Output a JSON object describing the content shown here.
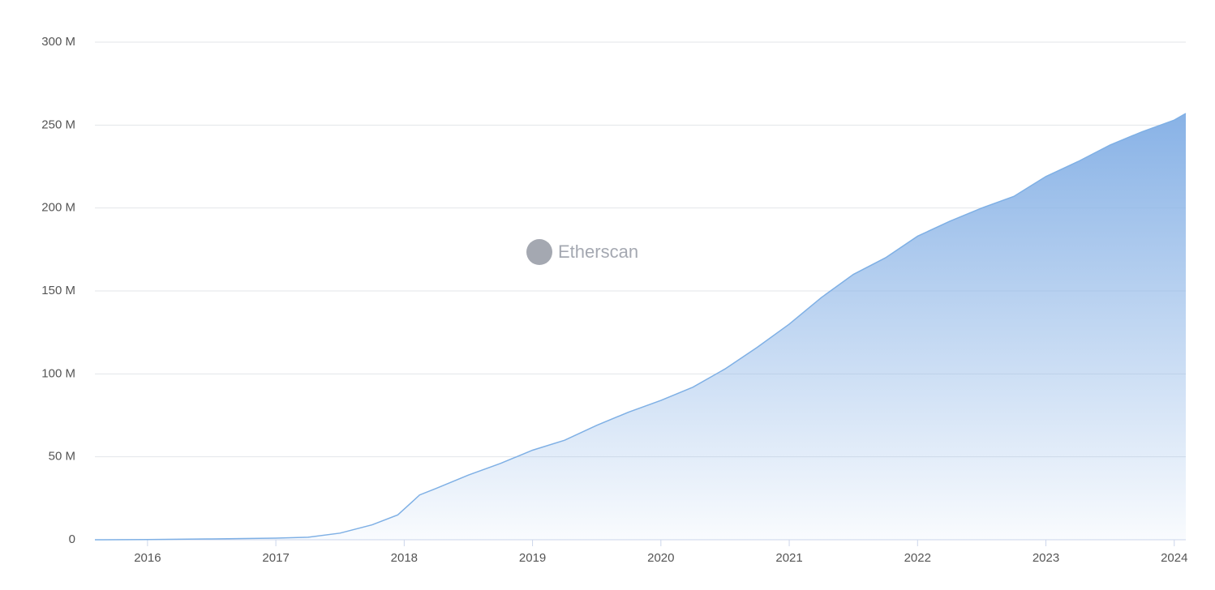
{
  "chart_data": {
    "type": "area",
    "watermark": "Etherscan",
    "x": [
      2015.59,
      2016.0,
      2016.5,
      2017.0,
      2017.25,
      2017.5,
      2017.75,
      2017.95,
      2018.05,
      2018.12,
      2018.25,
      2018.5,
      2018.75,
      2019.0,
      2019.25,
      2019.5,
      2019.75,
      2020.0,
      2020.25,
      2020.5,
      2020.75,
      2021.0,
      2021.25,
      2021.5,
      2021.75,
      2022.0,
      2022.25,
      2022.5,
      2022.75,
      2023.0,
      2023.25,
      2023.5,
      2023.75,
      2024.0,
      2024.09
    ],
    "values": [
      0,
      0.1,
      0.5,
      1,
      1.5,
      4,
      9,
      15,
      22,
      27,
      31,
      39,
      46,
      54,
      60,
      69,
      77,
      84,
      92,
      103,
      116,
      130,
      146,
      160,
      170,
      183,
      192,
      200,
      207,
      219,
      228,
      238,
      246,
      253,
      257
    ],
    "color": "#7fb0e5",
    "xlim": [
      2015.59,
      2024.09
    ],
    "xticks": [
      2016,
      2017,
      2018,
      2019,
      2020,
      2021,
      2022,
      2023,
      2024
    ],
    "ylim": [
      0,
      300
    ],
    "yticks": [
      0,
      {
        "value": 50,
        "label": "50 M"
      },
      {
        "value": 100,
        "label": "100 M"
      },
      {
        "value": 150,
        "label": "150 M"
      },
      {
        "value": 200,
        "label": "200 M"
      },
      {
        "value": 250,
        "label": "250 M"
      },
      {
        "value": 300,
        "label": "300 M"
      }
    ],
    "grid": true
  }
}
